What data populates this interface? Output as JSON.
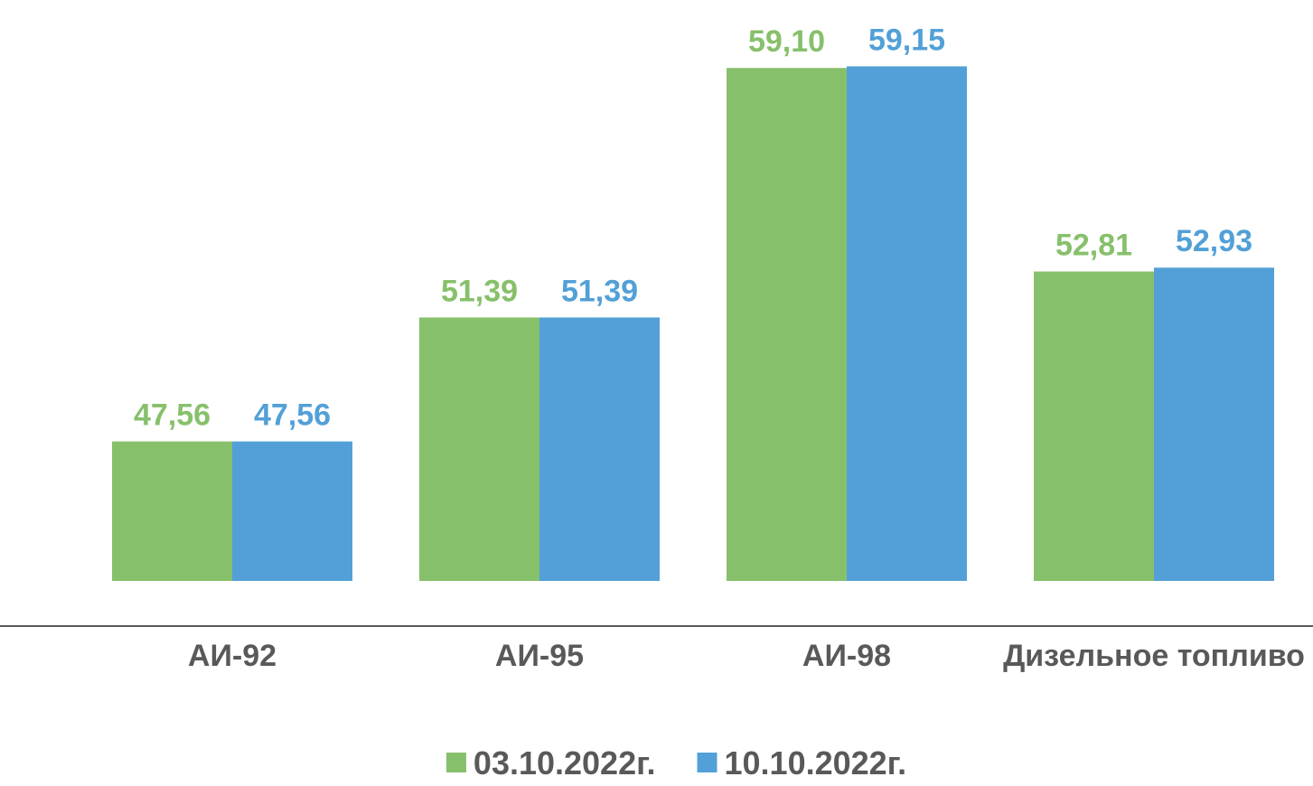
{
  "chart_data": {
    "type": "bar",
    "categories": [
      "АИ-92",
      "АИ-95",
      "АИ-98",
      "Дизельное топливо"
    ],
    "series": [
      {
        "name": "03.10.2022г.",
        "color": "#87c06b",
        "values": [
          47.56,
          51.39,
          59.1,
          52.81
        ],
        "labels": [
          "47,56",
          "51,39",
          "59,10",
          "52,81"
        ]
      },
      {
        "name": "10.10.2022г.",
        "color": "#52a0d7",
        "values": [
          47.56,
          51.39,
          59.15,
          52.93
        ],
        "labels": [
          "47,56",
          "51,39",
          "59,15",
          "52,93"
        ]
      }
    ],
    "title": "",
    "xlabel": "",
    "ylabel": "",
    "ylim": [
      43.25,
      61.2
    ],
    "grid": false,
    "legend_position": "bottom",
    "axis_color": "#595959"
  }
}
